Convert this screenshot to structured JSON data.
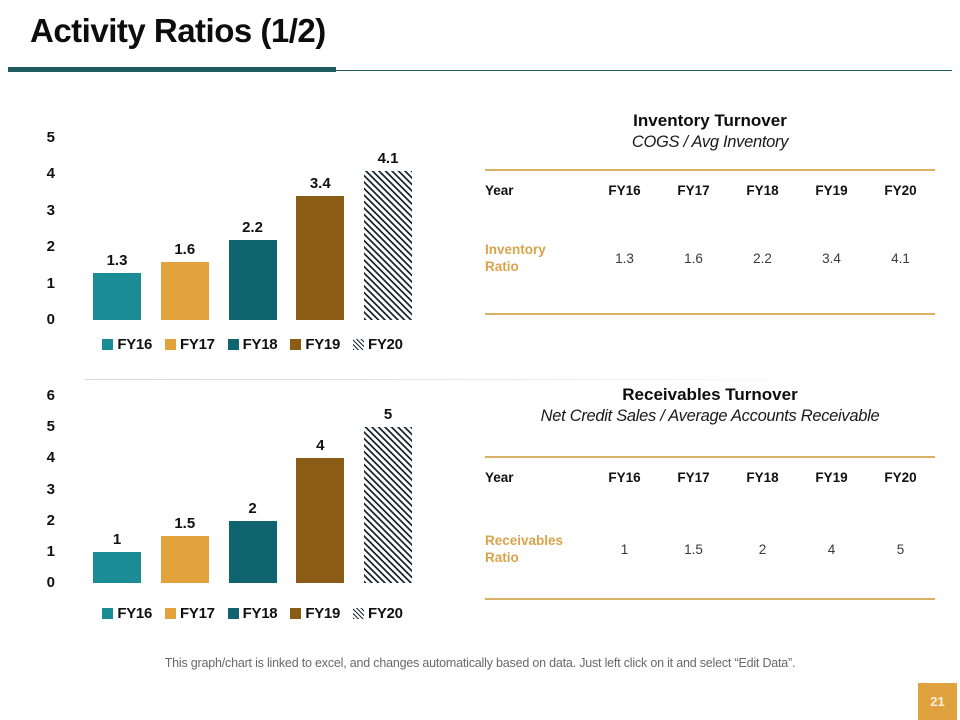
{
  "slide": {
    "title": "Activity Ratios (1/2)",
    "footer": "This graph/chart is linked to excel, and changes automatically based on data. Just left click on it and select “Edit Data”.",
    "page_number": "21"
  },
  "colors": {
    "title_underline": "#1f5b5e",
    "gold_line": "#d9b266",
    "gold_text": "#d9a34c",
    "page_box": "#dfa23e",
    "series": {
      "FY16": "#1b8c96",
      "FY17": "#e2a33d",
      "FY18": "#0f6470",
      "FY19": "#8a5c16",
      "FY20": "hatch"
    },
    "hatch_color": "#1c2a35"
  },
  "chart_data": [
    {
      "type": "bar",
      "categories": [
        "FY16",
        "FY17",
        "FY18",
        "FY19",
        "FY20"
      ],
      "values": [
        1.3,
        1.6,
        2.2,
        3.4,
        4.1
      ],
      "data_labels": [
        "1.3",
        "1.6",
        "2.2",
        "3.4",
        "4.1"
      ],
      "title": "",
      "xlabel": "",
      "ylabel": "",
      "ylim": [
        0,
        5
      ],
      "yticks": [
        0,
        1,
        2,
        3,
        4,
        5
      ],
      "grid": false,
      "legend_position": "bottom",
      "legend_entries": [
        "FY16",
        "FY17",
        "FY18",
        "FY19",
        "FY20"
      ]
    },
    {
      "type": "bar",
      "categories": [
        "FY16",
        "FY17",
        "FY18",
        "FY19",
        "FY20"
      ],
      "values": [
        1,
        1.5,
        2,
        4,
        5
      ],
      "data_labels": [
        "1",
        "1.5",
        "2",
        "4",
        "5"
      ],
      "title": "",
      "xlabel": "",
      "ylabel": "",
      "ylim": [
        0,
        6
      ],
      "yticks": [
        0,
        1,
        2,
        3,
        4,
        5,
        6
      ],
      "grid": false,
      "legend_position": "bottom",
      "legend_entries": [
        "FY16",
        "FY17",
        "FY18",
        "FY19",
        "FY20"
      ]
    }
  ],
  "tables": [
    {
      "title": "Inventory Turnover",
      "subtitle": "COGS / Avg Inventory",
      "header": [
        "Year",
        "FY16",
        "FY17",
        "FY18",
        "FY19",
        "FY20"
      ],
      "row_label": "Inventory Ratio",
      "values": [
        "1.3",
        "1.6",
        "2.2",
        "3.4",
        "4.1"
      ]
    },
    {
      "title": "Receivables Turnover",
      "subtitle": "Net Credit Sales / Average Accounts Receivable",
      "header": [
        "Year",
        "FY16",
        "FY17",
        "FY18",
        "FY19",
        "FY20"
      ],
      "row_label": "Receivables Ratio",
      "values": [
        "1",
        "1.5",
        "2",
        "4",
        "5"
      ]
    }
  ]
}
